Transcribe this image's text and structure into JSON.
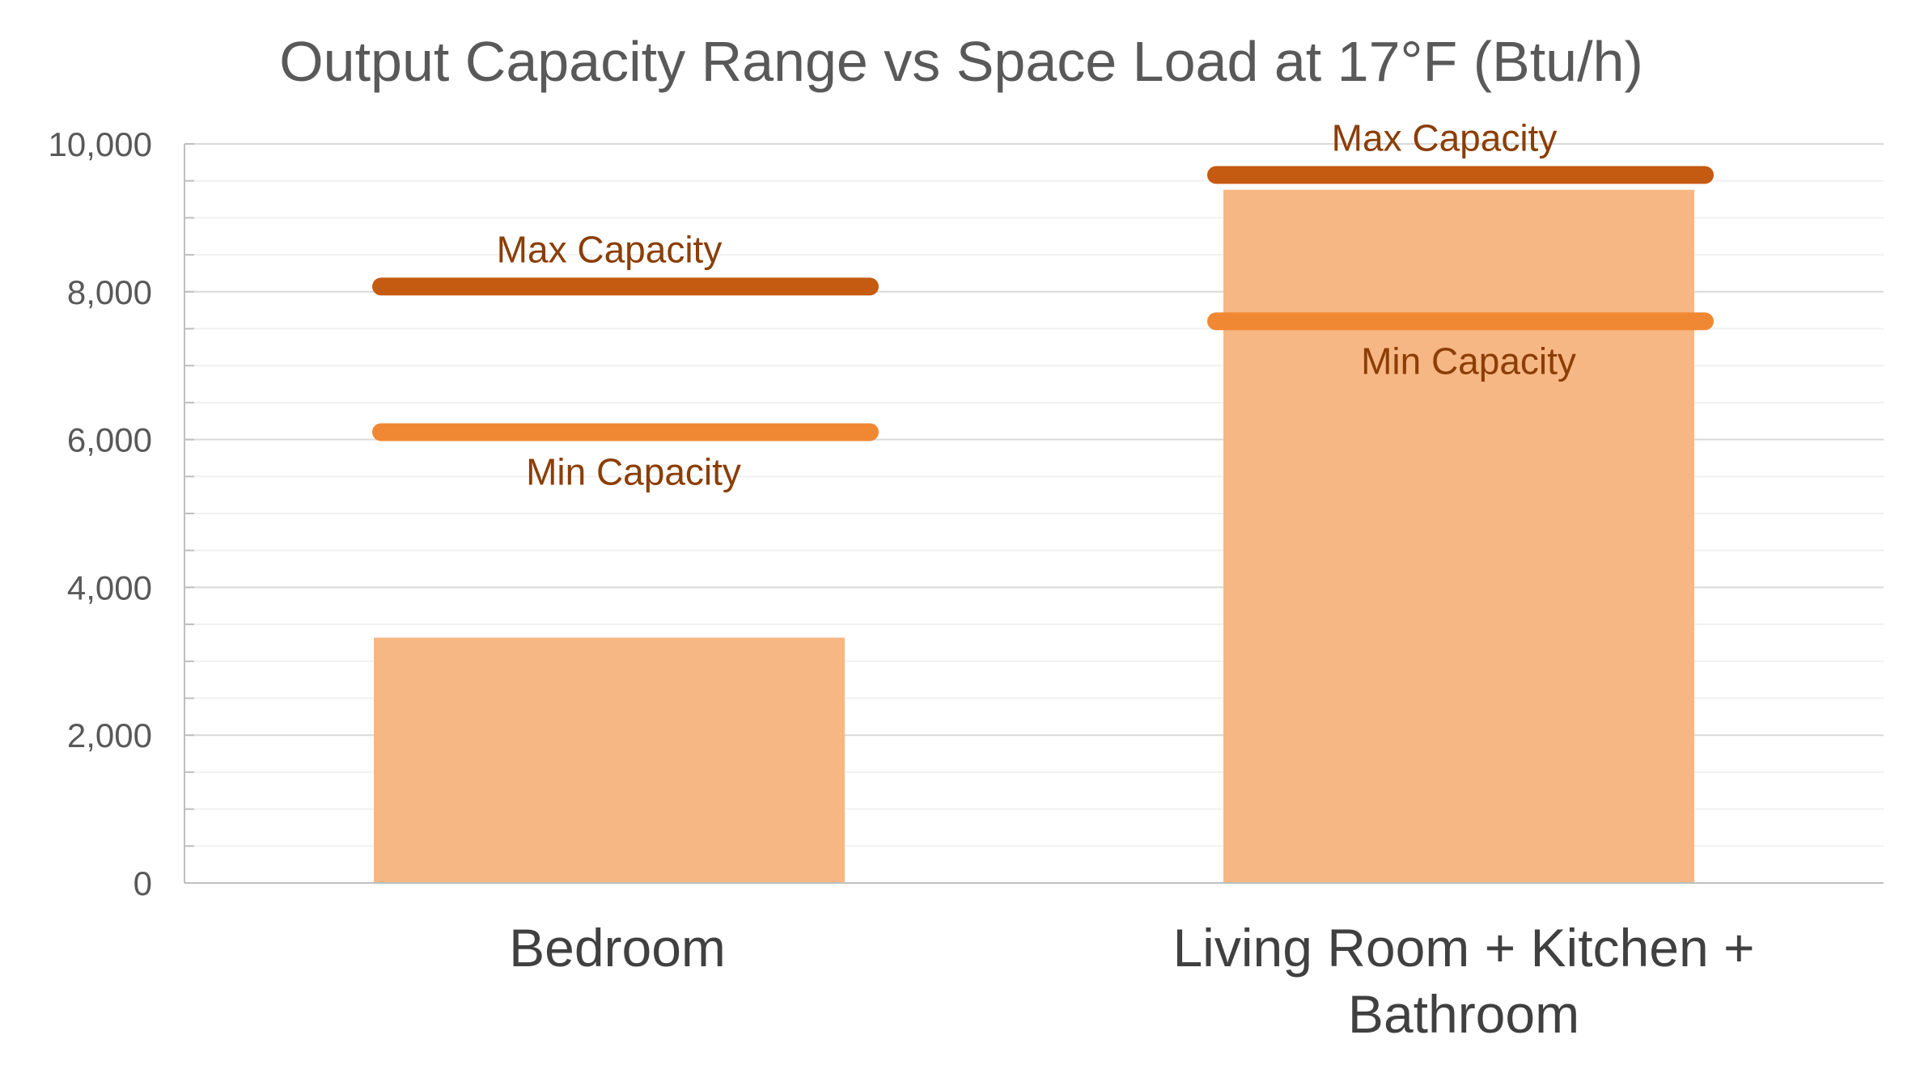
{
  "chart_data": {
    "type": "bar",
    "title": "Output Capacity Range vs Space Load at 17°F (Btu/h)",
    "categories": [
      [
        "Bedroom"
      ],
      [
        "Living Room + Kitchen +",
        "Bathroom"
      ]
    ],
    "series": [
      {
        "values": [
          3320,
          9380
        ],
        "color": "#F7B784"
      }
    ],
    "ranges": [
      {
        "category": "Bedroom",
        "max": 8070,
        "min": 6100,
        "max_label": "Max Capacity",
        "min_label": "Min Capacity"
      },
      {
        "category": "Living Room + Kitchen + Bathroom",
        "max": 9580,
        "min": 7600,
        "max_label": "Max Capacity",
        "min_label": "Min Capacity"
      }
    ],
    "max_color": "#C55A11",
    "min_color": "#F08833",
    "ylim": [
      0,
      10000
    ],
    "yticks": [
      0,
      2000,
      4000,
      6000,
      8000,
      10000
    ],
    "ytick_labels": [
      "0",
      "2,000",
      "4,000",
      "6,000",
      "8,000",
      "10,000"
    ],
    "ylabel": "",
    "xlabel": "",
    "grid": true,
    "legend": "none"
  }
}
